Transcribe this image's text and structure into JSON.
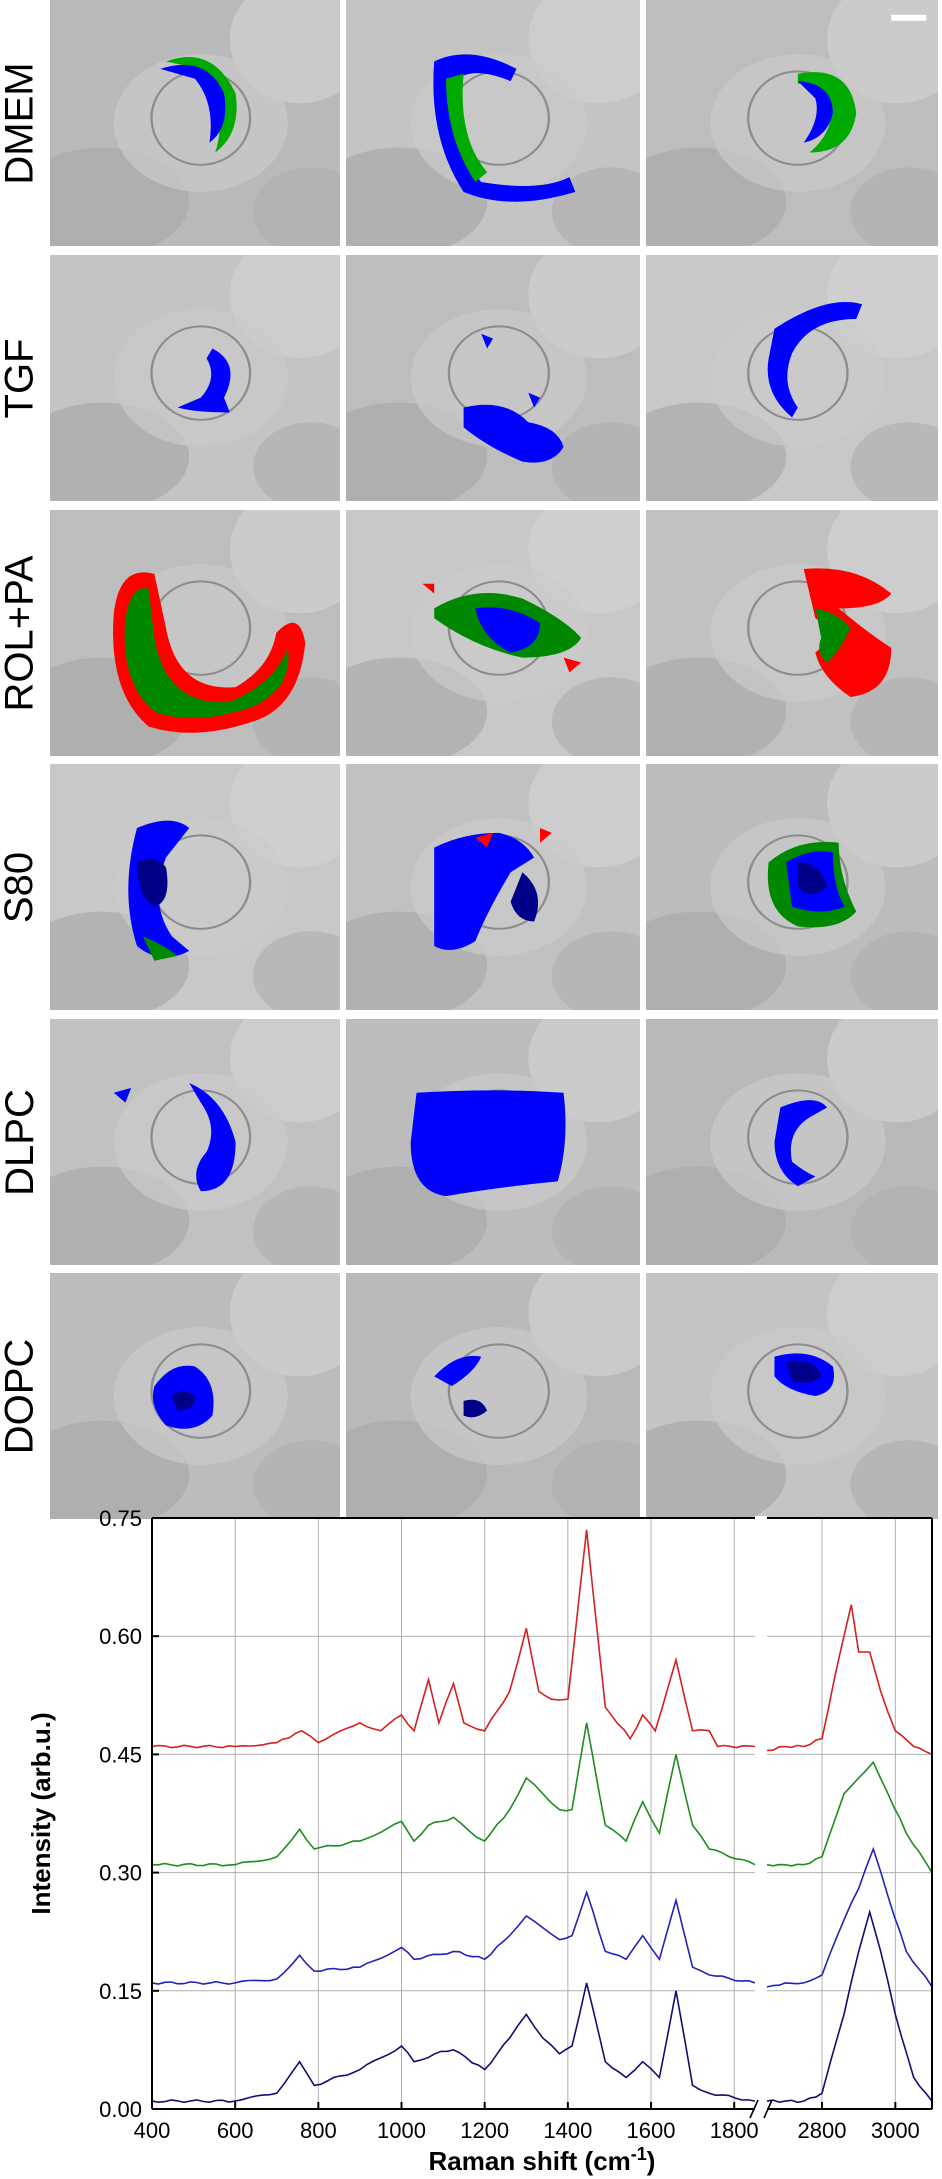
{
  "panel_rows": [
    {
      "label": "DMEM",
      "cells": [
        {
          "overlay": [
            "#00aa00",
            "#0000ff"
          ]
        },
        {
          "overlay": [
            "#0000ff",
            "#00aa00"
          ]
        },
        {
          "overlay": [
            "#00aa00",
            "#0000ff"
          ]
        }
      ]
    },
    {
      "label": "TGF",
      "cells": [
        {
          "overlay": [
            "#0000ff"
          ]
        },
        {
          "overlay": [
            "#0000ff"
          ]
        },
        {
          "overlay": [
            "#0000ff"
          ]
        }
      ]
    },
    {
      "label": "ROL+PA",
      "cells": [
        {
          "overlay": [
            "#ff0000",
            "#008800"
          ]
        },
        {
          "overlay": [
            "#008800",
            "#0000ff",
            "#ff0000"
          ]
        },
        {
          "overlay": [
            "#ff0000",
            "#008800"
          ]
        }
      ]
    },
    {
      "label": "S80",
      "cells": [
        {
          "overlay": [
            "#0000ff",
            "#000088",
            "#008800"
          ]
        },
        {
          "overlay": [
            "#0000ff",
            "#000088",
            "#ff0000"
          ]
        },
        {
          "overlay": [
            "#008800",
            "#0000ff",
            "#000088"
          ]
        }
      ]
    },
    {
      "label": "DLPC",
      "cells": [
        {
          "overlay": [
            "#0000ff"
          ]
        },
        {
          "overlay": [
            "#0000ff"
          ]
        },
        {
          "overlay": [
            "#0000ff"
          ]
        }
      ]
    },
    {
      "label": "DOPC",
      "cells": [
        {
          "overlay": [
            "#0000ff",
            "#000088"
          ]
        },
        {
          "overlay": [
            "#0000ff",
            "#000088"
          ]
        },
        {
          "overlay": [
            "#0000ff",
            "#000088"
          ]
        }
      ]
    }
  ],
  "chart_data": {
    "type": "line",
    "xlabel": "Raman shift (cm",
    "xlabel_sup": "-1",
    "xlabel_close": ")",
    "ylabel": "Intensity (arb.u.)",
    "ylim": [
      0,
      0.75
    ],
    "yticks": [
      "0.00",
      "0.15",
      "0.30",
      "0.45",
      "0.60",
      "0.75"
    ],
    "xticks_left": [
      "400",
      "600",
      "800",
      "1000",
      "1200",
      "1400",
      "1600",
      "1800"
    ],
    "xticks_right": [
      "2800",
      "3000"
    ],
    "x_break_between": [
      1850,
      2650
    ],
    "xlim_left": [
      400,
      1850
    ],
    "xlim_right": [
      2650,
      3100
    ],
    "grid": true,
    "series": [
      {
        "color": "#d42020",
        "left": [
          [
            400,
            0.46
          ],
          [
            600,
            0.46
          ],
          [
            700,
            0.465
          ],
          [
            760,
            0.48
          ],
          [
            800,
            0.465
          ],
          [
            900,
            0.49
          ],
          [
            950,
            0.48
          ],
          [
            1000,
            0.5
          ],
          [
            1030,
            0.48
          ],
          [
            1065,
            0.545
          ],
          [
            1090,
            0.49
          ],
          [
            1125,
            0.54
          ],
          [
            1150,
            0.49
          ],
          [
            1200,
            0.48
          ],
          [
            1260,
            0.53
          ],
          [
            1300,
            0.61
          ],
          [
            1330,
            0.53
          ],
          [
            1360,
            0.52
          ],
          [
            1400,
            0.52
          ],
          [
            1445,
            0.735
          ],
          [
            1490,
            0.51
          ],
          [
            1550,
            0.47
          ],
          [
            1580,
            0.5
          ],
          [
            1610,
            0.48
          ],
          [
            1660,
            0.57
          ],
          [
            1700,
            0.48
          ],
          [
            1740,
            0.48
          ],
          [
            1760,
            0.46
          ],
          [
            1850,
            0.46
          ]
        ],
        "right": [
          [
            2650,
            0.455
          ],
          [
            2700,
            0.46
          ],
          [
            2750,
            0.46
          ],
          [
            2800,
            0.47
          ],
          [
            2850,
            0.58
          ],
          [
            2880,
            0.64
          ],
          [
            2900,
            0.58
          ],
          [
            2930,
            0.58
          ],
          [
            2960,
            0.53
          ],
          [
            3000,
            0.48
          ],
          [
            3050,
            0.46
          ],
          [
            3100,
            0.45
          ]
        ]
      },
      {
        "color": "#1e8c1e",
        "left": [
          [
            400,
            0.31
          ],
          [
            600,
            0.31
          ],
          [
            700,
            0.32
          ],
          [
            755,
            0.355
          ],
          [
            790,
            0.33
          ],
          [
            900,
            0.34
          ],
          [
            1000,
            0.365
          ],
          [
            1030,
            0.34
          ],
          [
            1065,
            0.36
          ],
          [
            1125,
            0.37
          ],
          [
            1180,
            0.345
          ],
          [
            1200,
            0.34
          ],
          [
            1260,
            0.38
          ],
          [
            1300,
            0.42
          ],
          [
            1340,
            0.4
          ],
          [
            1380,
            0.38
          ],
          [
            1410,
            0.38
          ],
          [
            1445,
            0.49
          ],
          [
            1490,
            0.36
          ],
          [
            1540,
            0.34
          ],
          [
            1580,
            0.39
          ],
          [
            1620,
            0.35
          ],
          [
            1660,
            0.45
          ],
          [
            1700,
            0.36
          ],
          [
            1740,
            0.33
          ],
          [
            1850,
            0.31
          ]
        ],
        "right": [
          [
            2650,
            0.31
          ],
          [
            2700,
            0.31
          ],
          [
            2750,
            0.31
          ],
          [
            2800,
            0.32
          ],
          [
            2860,
            0.4
          ],
          [
            2900,
            0.42
          ],
          [
            2940,
            0.44
          ],
          [
            2980,
            0.4
          ],
          [
            3030,
            0.35
          ],
          [
            3100,
            0.3
          ]
        ]
      },
      {
        "color": "#2323b4",
        "left": [
          [
            400,
            0.16
          ],
          [
            600,
            0.16
          ],
          [
            700,
            0.165
          ],
          [
            755,
            0.195
          ],
          [
            790,
            0.175
          ],
          [
            900,
            0.18
          ],
          [
            1000,
            0.205
          ],
          [
            1030,
            0.19
          ],
          [
            1125,
            0.2
          ],
          [
            1200,
            0.19
          ],
          [
            1260,
            0.22
          ],
          [
            1300,
            0.245
          ],
          [
            1340,
            0.23
          ],
          [
            1380,
            0.215
          ],
          [
            1410,
            0.22
          ],
          [
            1445,
            0.275
          ],
          [
            1490,
            0.2
          ],
          [
            1540,
            0.19
          ],
          [
            1580,
            0.22
          ],
          [
            1620,
            0.19
          ],
          [
            1660,
            0.265
          ],
          [
            1700,
            0.18
          ],
          [
            1740,
            0.17
          ],
          [
            1850,
            0.16
          ]
        ],
        "right": [
          [
            2650,
            0.155
          ],
          [
            2700,
            0.16
          ],
          [
            2750,
            0.16
          ],
          [
            2800,
            0.17
          ],
          [
            2860,
            0.24
          ],
          [
            2900,
            0.28
          ],
          [
            2940,
            0.33
          ],
          [
            2980,
            0.27
          ],
          [
            3030,
            0.2
          ],
          [
            3100,
            0.155
          ]
        ]
      },
      {
        "color": "#0f0f70",
        "left": [
          [
            400,
            0.01
          ],
          [
            600,
            0.01
          ],
          [
            700,
            0.02
          ],
          [
            755,
            0.06
          ],
          [
            790,
            0.03
          ],
          [
            900,
            0.05
          ],
          [
            1000,
            0.08
          ],
          [
            1030,
            0.06
          ],
          [
            1080,
            0.07
          ],
          [
            1125,
            0.075
          ],
          [
            1200,
            0.05
          ],
          [
            1260,
            0.09
          ],
          [
            1300,
            0.12
          ],
          [
            1340,
            0.09
          ],
          [
            1380,
            0.07
          ],
          [
            1410,
            0.08
          ],
          [
            1445,
            0.16
          ],
          [
            1490,
            0.06
          ],
          [
            1540,
            0.04
          ],
          [
            1580,
            0.06
          ],
          [
            1620,
            0.04
          ],
          [
            1660,
            0.15
          ],
          [
            1700,
            0.03
          ],
          [
            1740,
            0.02
          ],
          [
            1850,
            0.01
          ]
        ],
        "right": [
          [
            2650,
            0.01
          ],
          [
            2700,
            0.01
          ],
          [
            2750,
            0.01
          ],
          [
            2800,
            0.02
          ],
          [
            2860,
            0.12
          ],
          [
            2900,
            0.2
          ],
          [
            2930,
            0.25
          ],
          [
            2960,
            0.2
          ],
          [
            3000,
            0.12
          ],
          [
            3050,
            0.04
          ],
          [
            3100,
            0.01
          ]
        ]
      }
    ]
  }
}
